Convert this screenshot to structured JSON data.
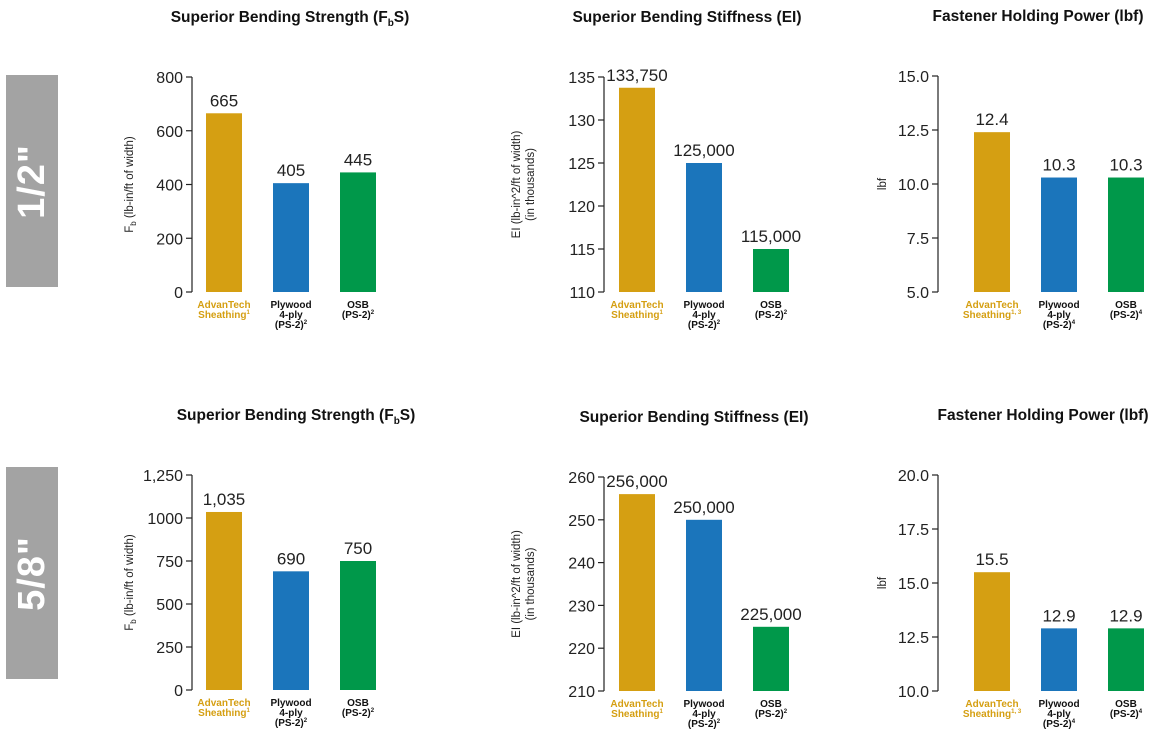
{
  "row_labels": [
    "1/2\"",
    "5/8\""
  ],
  "colors": {
    "advantech": "#d59f12",
    "plywood": "#1b75bb",
    "osb": "#00984a",
    "advantech_label": "#d59f12",
    "axis": "#222222",
    "row_label_bg": "#a3a3a3"
  },
  "category_labels": {
    "advantech": [
      "AdvanTech",
      "Sheathing"
    ],
    "plywood": [
      "Plywood",
      "4-ply",
      "(PS-2)"
    ],
    "osb": [
      "OSB",
      "(PS-2)"
    ]
  },
  "chart_data": [
    {
      "type": "bar",
      "row": "1/2\"",
      "title": "Superior Bending Strength (FbS)",
      "ylabel": "FbS (lb-in/ft of width)",
      "ylim": [
        0,
        800
      ],
      "yticks": [
        0,
        200,
        400,
        600,
        800
      ],
      "ytick_labels": [
        "0",
        "200",
        "400",
        "600",
        "800"
      ],
      "categories": [
        "AdvanTech Sheathing",
        "Plywood 4-ply (PS-2)",
        "OSB (PS-2)"
      ],
      "category_superscripts": [
        "1",
        "2",
        "2"
      ],
      "values": [
        665,
        405,
        445
      ],
      "value_labels": [
        "665",
        "405",
        "445"
      ]
    },
    {
      "type": "bar",
      "row": "1/2\"",
      "title": "Superior Bending Stiffness (EI)",
      "ylabel": "EI (lb-in^2/ft of width) (in thousands)",
      "ylim": [
        110,
        135
      ],
      "yticks": [
        110,
        115,
        120,
        125,
        130,
        135
      ],
      "ytick_labels": [
        "110",
        "115",
        "120",
        "125",
        "130",
        "135"
      ],
      "categories": [
        "AdvanTech Sheathing",
        "Plywood 4-ply (PS-2)",
        "OSB (PS-2)"
      ],
      "category_superscripts": [
        "1",
        "2",
        "2"
      ],
      "values": [
        133750,
        125000,
        115000
      ],
      "value_labels": [
        "133,750",
        "125,000",
        "115,000"
      ]
    },
    {
      "type": "bar",
      "row": "1/2\"",
      "title": "Fastener Holding Power (lbf)",
      "ylabel": "lbf",
      "ylim": [
        5.0,
        15.0
      ],
      "yticks": [
        5.0,
        7.5,
        10.0,
        12.5,
        15.0
      ],
      "ytick_labels": [
        "5.0",
        "7.5",
        "10.0",
        "12.5",
        "15.0"
      ],
      "categories": [
        "AdvanTech Sheathing",
        "Plywood 4-ply (PS-2)",
        "OSB (PS-2)"
      ],
      "category_superscripts": [
        "1, 3",
        "4",
        "4"
      ],
      "values": [
        12.4,
        10.3,
        10.3
      ],
      "value_labels": [
        "12.4",
        "10.3",
        "10.3"
      ]
    },
    {
      "type": "bar",
      "row": "5/8\"",
      "title": "Superior Bending Strength (FbS)",
      "ylabel": "FbS (lb-in/ft of width)",
      "ylim": [
        0,
        1250
      ],
      "yticks": [
        0,
        250,
        500,
        750,
        1000,
        1250
      ],
      "ytick_labels": [
        "0",
        "250",
        "500",
        "750",
        "1000",
        "1,250"
      ],
      "categories": [
        "AdvanTech Sheathing",
        "Plywood 4-ply (PS-2)",
        "OSB (PS-2)"
      ],
      "category_superscripts": [
        "1",
        "2",
        "2"
      ],
      "values": [
        1035,
        690,
        750
      ],
      "value_labels": [
        "1,035",
        "690",
        "750"
      ]
    },
    {
      "type": "bar",
      "row": "5/8\"",
      "title": "Superior Bending Stiffness (EI)",
      "ylabel": "EI (lb-in^2/ft of width) (in thousands)",
      "ylim": [
        210,
        260
      ],
      "yticks": [
        210,
        220,
        230,
        240,
        250,
        260
      ],
      "ytick_labels": [
        "210",
        "220",
        "230",
        "240",
        "250",
        "260"
      ],
      "categories": [
        "AdvanTech Sheathing",
        "Plywood 4-ply (PS-2)",
        "OSB (PS-2)"
      ],
      "category_superscripts": [
        "1",
        "2",
        "2"
      ],
      "values": [
        256000,
        250000,
        225000
      ],
      "value_labels": [
        "256,000",
        "250,000",
        "225,000"
      ]
    },
    {
      "type": "bar",
      "row": "5/8\"",
      "title": "Fastener Holding Power (lbf)",
      "ylabel": "lbf",
      "ylim": [
        10.0,
        20.0
      ],
      "yticks": [
        10.0,
        12.5,
        15.0,
        17.5,
        20.0
      ],
      "ytick_labels": [
        "10.0",
        "12.5",
        "15.0",
        "17.5",
        "20.0"
      ],
      "categories": [
        "AdvanTech Sheathing",
        "Plywood 4-ply (PS-2)",
        "OSB (PS-2)"
      ],
      "category_superscripts": [
        "1, 3",
        "4",
        "4"
      ],
      "values": [
        15.5,
        12.9,
        12.9
      ],
      "value_labels": [
        "15.5",
        "12.9",
        "12.9"
      ]
    }
  ]
}
